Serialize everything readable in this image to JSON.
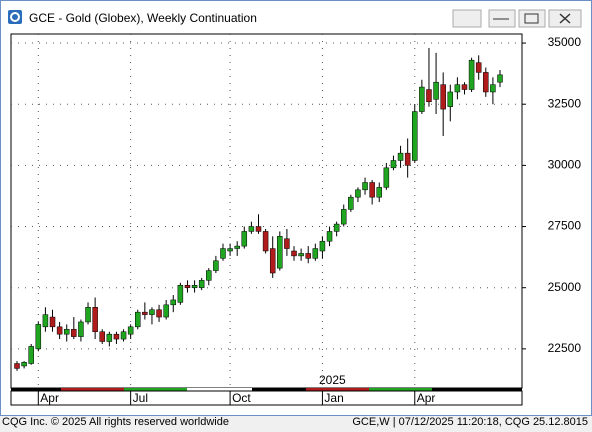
{
  "header": {
    "title": "GCE - Gold (Globex), Weekly Continuation"
  },
  "footer": {
    "left": "CQG Inc. © 2025 All rights reserved worldwide",
    "right": "GCE,W | 07/12/2025 11:20:18, CQG 25.12.8015"
  },
  "chart_data": {
    "type": "candlestick",
    "year_label": "2025",
    "categories": [
      null,
      null,
      null,
      "Apr",
      null,
      null,
      null,
      null,
      null,
      null,
      null,
      null,
      null,
      null,
      null,
      null,
      "Jul",
      null,
      null,
      null,
      null,
      null,
      null,
      null,
      null,
      null,
      null,
      null,
      null,
      null,
      "Oct",
      null,
      null,
      null,
      null,
      null,
      null,
      null,
      null,
      null,
      null,
      null,
      null,
      "Jan",
      null,
      null,
      null,
      null,
      null,
      null,
      null,
      null,
      null,
      null,
      null,
      null,
      "Apr",
      null,
      null,
      null,
      null,
      null,
      null,
      null,
      null,
      null,
      null,
      null,
      null
    ],
    "open": [
      21900,
      21800,
      21900,
      22500,
      23400,
      23800,
      23400,
      23100,
      23300,
      23000,
      23600,
      24200,
      23200,
      22800,
      23100,
      22900,
      23100,
      23400,
      24000,
      23900,
      24100,
      23800,
      24300,
      24400,
      25100,
      25000,
      25000,
      25300,
      25700,
      26200,
      26500,
      26600,
      26700,
      27300,
      27500,
      27300,
      26600,
      25800,
      27000,
      26500,
      26300,
      26400,
      26200,
      26500,
      26900,
      27300,
      27600,
      28200,
      28700,
      29000,
      29300,
      28700,
      29100,
      29900,
      30200,
      30500,
      30200,
      32200,
      33100,
      32700,
      33300,
      32400,
      33000,
      33300,
      33100,
      34200,
      33800,
      33000,
      33400
    ],
    "high": [
      22000,
      22000,
      22700,
      23600,
      24200,
      24100,
      23600,
      23500,
      23800,
      23700,
      24400,
      24600,
      23300,
      23200,
      23200,
      23300,
      23500,
      24100,
      24400,
      24200,
      24300,
      24500,
      24700,
      25200,
      25300,
      25300,
      25400,
      25800,
      26300,
      26800,
      26800,
      26900,
      27500,
      27700,
      28000,
      27400,
      27100,
      27300,
      27400,
      26700,
      26600,
      26700,
      26800,
      27100,
      27500,
      27700,
      28400,
      28800,
      29100,
      29500,
      29400,
      29300,
      30100,
      30400,
      30800,
      31100,
      32500,
      33500,
      34800,
      34600,
      33800,
      33300,
      33600,
      33400,
      34400,
      34500,
      34000,
      33600,
      33900
    ],
    "low": [
      21600,
      21700,
      21850,
      22400,
      23200,
      23200,
      22900,
      22800,
      22900,
      22800,
      23500,
      22900,
      22700,
      22600,
      22700,
      22800,
      22900,
      23300,
      23700,
      23500,
      23600,
      23700,
      24000,
      24300,
      24800,
      24800,
      24900,
      25100,
      25600,
      26100,
      26300,
      26300,
      26600,
      27200,
      27200,
      26400,
      25400,
      25700,
      26300,
      26100,
      26100,
      26000,
      26100,
      26200,
      26700,
      27100,
      27500,
      28100,
      28500,
      28800,
      28400,
      28500,
      29000,
      29800,
      29900,
      29500,
      30100,
      32100,
      32400,
      32100,
      31200,
      31800,
      32700,
      32900,
      33000,
      33500,
      32800,
      32500,
      33200
    ],
    "close": [
      21700,
      21950,
      22600,
      23500,
      23900,
      23400,
      23100,
      23300,
      23000,
      23600,
      24200,
      23200,
      22800,
      23100,
      22900,
      23200,
      23400,
      24000,
      23900,
      24100,
      23800,
      24300,
      24500,
      25100,
      25000,
      25100,
      25300,
      25700,
      26100,
      26600,
      26600,
      26700,
      27300,
      27500,
      27300,
      26500,
      25600,
      27100,
      26600,
      26300,
      26400,
      26200,
      26600,
      26900,
      27300,
      27600,
      28200,
      28700,
      29000,
      29300,
      28700,
      29100,
      29900,
      30200,
      30500,
      30000,
      32200,
      33200,
      32600,
      33400,
      32300,
      33000,
      33300,
      33100,
      34300,
      33800,
      33000,
      33300,
      33700
    ],
    "up_color": "#1fa51f",
    "down_color": "#b01c1c",
    "ylim": [
      20900,
      35370
    ],
    "yticks": [
      22500,
      25000,
      27500,
      30000,
      32500,
      35000
    ],
    "grid": true
  }
}
